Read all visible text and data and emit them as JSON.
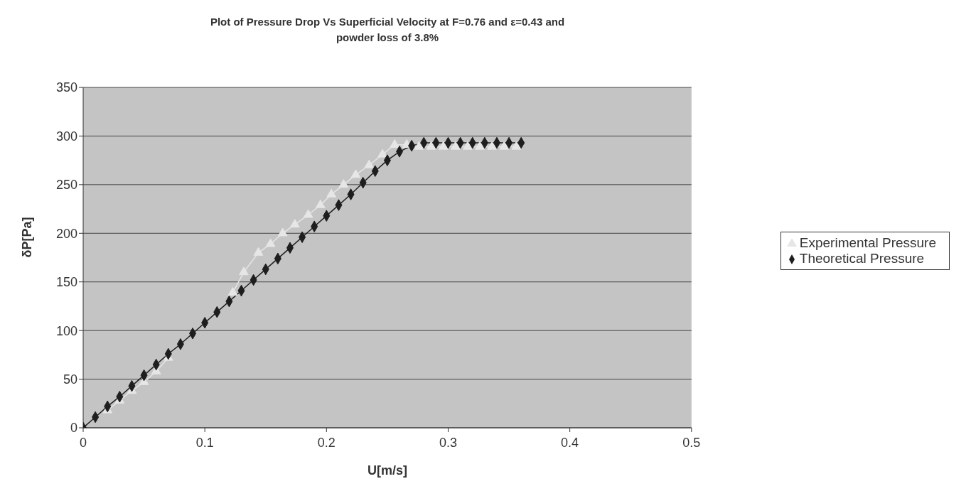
{
  "chart_data": {
    "type": "line",
    "title": "Plot of Pressure Drop Vs Superficial Velocity at F=0.76 and ε=0.43 and powder loss of 3.8%",
    "xlabel": "U[m/s]",
    "ylabel": "δP[Pa]",
    "xlim": [
      0,
      0.5
    ],
    "xticks": [
      0,
      0.1,
      0.2,
      0.3,
      0.4,
      0.5
    ],
    "ylim": [
      0,
      350
    ],
    "yticks": [
      0,
      50,
      100,
      150,
      200,
      250,
      300,
      350
    ],
    "grid": "y",
    "legend": "right",
    "series": [
      {
        "name": "Experimental Pressure",
        "color": "#e6e6e6",
        "marker": "triangle",
        "x": [
          0.02,
          0.03,
          0.04,
          0.05,
          0.06,
          0.07,
          0.08,
          0.09,
          0.1,
          0.11,
          0.123,
          0.132,
          0.144,
          0.154,
          0.164,
          0.174,
          0.185,
          0.195,
          0.204,
          0.214,
          0.224,
          0.235,
          0.246,
          0.256,
          0.266,
          0.276,
          0.286,
          0.296,
          0.306,
          0.316,
          0.326,
          0.336,
          0.346,
          0.356
        ],
        "values": [
          18,
          28,
          38,
          47,
          58,
          72,
          null,
          null,
          null,
          null,
          139,
          160,
          180,
          189,
          200,
          209,
          219,
          229,
          240,
          250,
          260,
          270,
          281,
          291,
          291,
          289,
          289,
          289,
          289,
          289,
          289,
          289,
          289,
          289
        ]
      },
      {
        "name": "Theoretical Pressure",
        "color": "#1e1e1e",
        "marker": "diamond",
        "x": [
          0,
          0.01,
          0.02,
          0.03,
          0.04,
          0.05,
          0.06,
          0.07,
          0.08,
          0.09,
          0.1,
          0.11,
          0.12,
          0.13,
          0.14,
          0.15,
          0.16,
          0.17,
          0.18,
          0.19,
          0.2,
          0.21,
          0.22,
          0.23,
          0.24,
          0.25,
          0.26,
          0.27,
          0.28,
          0.29,
          0.3,
          0.31,
          0.32,
          0.33,
          0.34,
          0.35,
          0.36
        ],
        "values": [
          0,
          11,
          22,
          32,
          43,
          54,
          65,
          76,
          86,
          97,
          108,
          119,
          130,
          141,
          152,
          163,
          174,
          185,
          196,
          207,
          218,
          229,
          240,
          252,
          264,
          275,
          284,
          290,
          293,
          293,
          293,
          293,
          293,
          293,
          293,
          293,
          293
        ]
      }
    ]
  }
}
